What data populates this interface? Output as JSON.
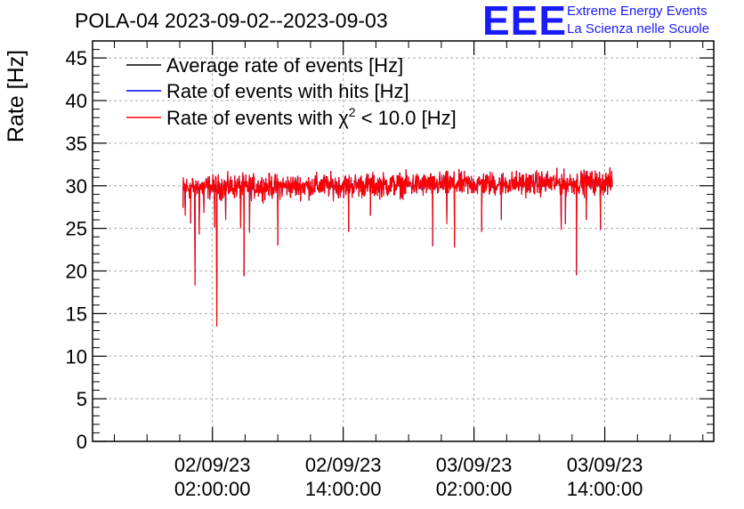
{
  "header": {
    "title": "POLA-04 2023-09-02--2023-09-03",
    "logo": "EEE",
    "org_line1": "Extreme Energy Events",
    "org_line2": "La Scienza nelle Scuole",
    "brand_color": "#1a1aff"
  },
  "chart_data": {
    "type": "line",
    "ylabel": "Rate [Hz]",
    "xlabel": "",
    "ylim": [
      0,
      47
    ],
    "xlim_hours": [
      -9.0,
      48.0
    ],
    "grid": true,
    "legend_position": "top-left",
    "y_ticks": [
      0,
      5,
      10,
      15,
      20,
      25,
      30,
      35,
      40,
      45
    ],
    "x_ticks": [
      {
        "date": "02/09/23",
        "time": "02:00:00",
        "hour": 2
      },
      {
        "date": "02/09/23",
        "time": "14:00:00",
        "hour": 14
      },
      {
        "date": "03/09/23",
        "time": "02:00:00",
        "hour": 26
      },
      {
        "date": "03/09/23",
        "time": "14:00:00",
        "hour": 38
      }
    ],
    "series": [
      {
        "name": "Average rate of events [Hz]",
        "color": "#000000"
      },
      {
        "name": "Rate of events with hits [Hz]",
        "color": "#0000ff"
      },
      {
        "name_prefix": "Rate of events with ",
        "name_symbol": "χ",
        "name_sup": "2",
        "name_suffix": " < 10.0 [Hz]",
        "color": "#ff0000"
      }
    ],
    "data_range_hours": [
      -0.7,
      38.7
    ],
    "baseline_start": 29.8,
    "baseline_end": 30.4,
    "dips": [
      {
        "hour": -0.5,
        "value": 26.5
      },
      {
        "hour": 0.0,
        "value": 25.6
      },
      {
        "hour": 0.4,
        "value": 18.3
      },
      {
        "hour": 0.8,
        "value": 24.3
      },
      {
        "hour": 1.2,
        "value": 26.8
      },
      {
        "hour": 2.2,
        "value": 25.1
      },
      {
        "hour": 2.4,
        "value": 13.5
      },
      {
        "hour": 3.2,
        "value": 26.0
      },
      {
        "hour": 4.6,
        "value": 25.0
      },
      {
        "hour": 4.9,
        "value": 19.4
      },
      {
        "hour": 5.4,
        "value": 24.5
      },
      {
        "hour": 8.0,
        "value": 23.0
      },
      {
        "hour": 14.5,
        "value": 24.6
      },
      {
        "hour": 16.5,
        "value": 26.5
      },
      {
        "hour": 22.2,
        "value": 22.9
      },
      {
        "hour": 23.5,
        "value": 25.5
      },
      {
        "hour": 24.2,
        "value": 22.8
      },
      {
        "hour": 26.7,
        "value": 24.6
      },
      {
        "hour": 28.5,
        "value": 26.0
      },
      {
        "hour": 34.0,
        "value": 24.8
      },
      {
        "hour": 34.4,
        "value": 25.5
      },
      {
        "hour": 35.4,
        "value": 19.5
      },
      {
        "hour": 36.3,
        "value": 26.0
      },
      {
        "hour": 37.6,
        "value": 24.8
      }
    ]
  }
}
